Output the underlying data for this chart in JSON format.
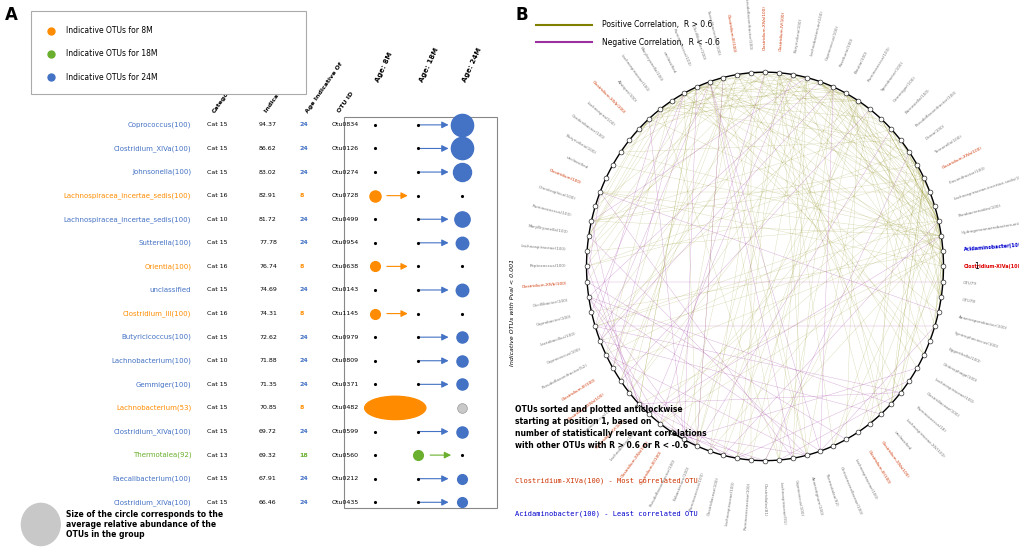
{
  "panel_A": {
    "legend_items": [
      {
        "label": "Indicative OTUs for 8M",
        "color": "#FF8C00"
      },
      {
        "label": "Indicative OTUs for 18M",
        "color": "#6AAF2E"
      },
      {
        "label": "Indicative OTUs for 24M",
        "color": "#4472C4"
      }
    ],
    "rows": [
      {
        "name": "Coprococcus(100)",
        "category": "Cat 15",
        "indicator": 94.37,
        "age": 24,
        "otu": "Otu0834",
        "color": "#4472C4",
        "ms": 16
      },
      {
        "name": "Clostridium_XIVa(100)",
        "category": "Cat 15",
        "indicator": 86.62,
        "age": 24,
        "otu": "Otu0126",
        "color": "#4472C4",
        "ms": 16
      },
      {
        "name": "Johnsonella(100)",
        "category": "Cat 15",
        "indicator": 83.02,
        "age": 24,
        "otu": "Otu0274",
        "color": "#4472C4",
        "ms": 13
      },
      {
        "name": "Lachnospiracea_incertae_sedis(100)",
        "category": "Cat 16",
        "indicator": 82.91,
        "age": 8,
        "otu": "Otu0728",
        "color": "#FF8C00",
        "ms": 8
      },
      {
        "name": "Lachnospiracea_incertae_sedis(100)",
        "category": "Cat 10",
        "indicator": 81.72,
        "age": 24,
        "otu": "Otu0499",
        "color": "#4472C4",
        "ms": 11
      },
      {
        "name": "Sutterella(100)",
        "category": "Cat 15",
        "indicator": 77.78,
        "age": 24,
        "otu": "Otu0954",
        "color": "#4472C4",
        "ms": 9
      },
      {
        "name": "Orientia(100)",
        "category": "Cat 16",
        "indicator": 76.74,
        "age": 8,
        "otu": "Otu0638",
        "color": "#FF8C00",
        "ms": 7
      },
      {
        "name": "unclassified",
        "category": "Cat 15",
        "indicator": 74.69,
        "age": 24,
        "otu": "Otu0143",
        "color": "#4472C4",
        "ms": 9
      },
      {
        "name": "Clostridium_III(100)",
        "category": "Cat 16",
        "indicator": 74.31,
        "age": 8,
        "otu": "Otu1145",
        "color": "#FF8C00",
        "ms": 7
      },
      {
        "name": "Butyricicoccus(100)",
        "category": "Cat 15",
        "indicator": 72.62,
        "age": 24,
        "otu": "Otu0979",
        "color": "#4472C4",
        "ms": 8
      },
      {
        "name": "Lachnobacterium(100)",
        "category": "Cat 10",
        "indicator": 71.88,
        "age": 24,
        "otu": "Otu0809",
        "color": "#4472C4",
        "ms": 8
      },
      {
        "name": "Gemmiger(100)",
        "category": "Cat 15",
        "indicator": 71.35,
        "age": 24,
        "otu": "Otu0371",
        "color": "#4472C4",
        "ms": 8
      },
      {
        "name": "Lachnobacterium(53)",
        "category": "Cat 15",
        "indicator": 70.85,
        "age": 8,
        "otu": "Otu0482",
        "color": "#FF8C00",
        "ms": 0,
        "special_big_orange": true
      },
      {
        "name": "Clostridium_XIVa(100)",
        "category": "Cat 15",
        "indicator": 69.72,
        "age": 24,
        "otu": "Otu0599",
        "color": "#4472C4",
        "ms": 8
      },
      {
        "name": "Thermotalea(92)",
        "category": "Cat 13",
        "indicator": 69.32,
        "age": 18,
        "otu": "Otu0560",
        "color": "#6AAF2E",
        "ms": 7
      },
      {
        "name": "Faecalibacterium(100)",
        "category": "Cat 15",
        "indicator": 67.91,
        "age": 24,
        "otu": "Otu0212",
        "color": "#4472C4",
        "ms": 7
      },
      {
        "name": "Clostridium_XIVa(100)",
        "category": "Cat 15",
        "indicator": 66.46,
        "age": 24,
        "otu": "Otu0435",
        "color": "#4472C4",
        "ms": 7
      }
    ],
    "size_note": "Size of the circle corresponds to the\naverage relative abundance of the\nOTUs in the group"
  },
  "panel_B": {
    "annotation_text1": "OTUs sorted and plotted anticlockwise\nstarting at position 1, based on\nnumber of statistically relevant correlations\nwith other OTUs with R > 0.6 or R < -0.6",
    "annotation_red": "Clostridium-XIVa(100) - Most correlated OTU",
    "annotation_blue": "Acidaminobacter(100) - Least correlated OTU",
    "positive_color": "#808000",
    "negative_color": "#9B30A0"
  }
}
